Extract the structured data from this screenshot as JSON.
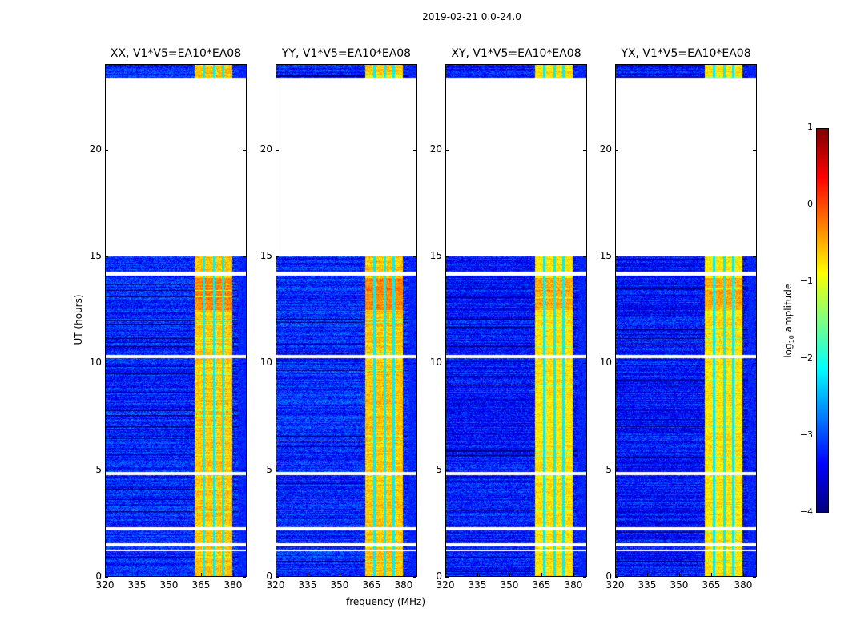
{
  "chart_data": {
    "type": "heatmap",
    "title": "2019-02-21 0.0-24.0",
    "panels": [
      {
        "title": "XX, V1*V5=EA10*EA08"
      },
      {
        "title": "YY, V1*V5=EA10*EA08"
      },
      {
        "title": "XY, V1*V5=EA10*EA08"
      },
      {
        "title": "YX, V1*V5=EA10*EA08"
      }
    ],
    "xlabel": "frequency (MHz)",
    "ylabel": "UT (hours)",
    "xlim": [
      320,
      386.4
    ],
    "ylim": [
      0,
      24
    ],
    "xticks": [
      320,
      335,
      350,
      365,
      380
    ],
    "yticks": [
      0,
      5,
      10,
      15,
      20
    ],
    "data_intervals_hours": [
      [
        0.0,
        1.15
      ],
      [
        1.25,
        1.4
      ],
      [
        1.55,
        2.15
      ],
      [
        2.3,
        4.75
      ],
      [
        4.9,
        10.25
      ],
      [
        10.4,
        14.1
      ],
      [
        14.3,
        15.0
      ],
      [
        23.4,
        24.0
      ]
    ],
    "rfi_band_mhz": [
      362,
      380
    ],
    "rfi_subband_edges_mhz": [
      366.5,
      371.5,
      375.5
    ],
    "background_log10_amplitude": -3.2,
    "band_log10_amplitude": -0.6,
    "colorbar": {
      "label": "log10 amplitude",
      "label_main": "log",
      "label_sub": "10",
      "label_rest": " amplitude",
      "min": -4,
      "max": 1,
      "ticks": [
        1,
        0,
        -1,
        -2,
        -3,
        -4
      ],
      "tick_labels": [
        "1",
        "0",
        "−1",
        "−2",
        "−3",
        "−4"
      ],
      "colormap": "jet"
    }
  }
}
